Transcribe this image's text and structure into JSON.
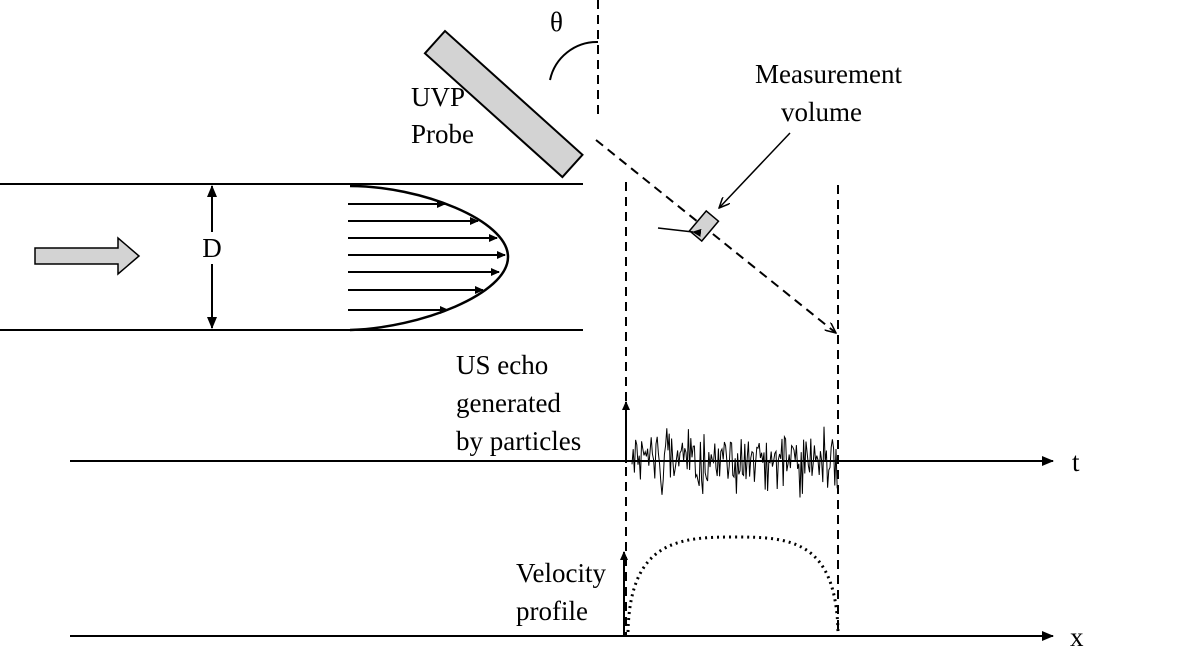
{
  "labels": {
    "theta": "θ",
    "probe_line1": "UVP",
    "probe_line2": "Probe",
    "measurement_line1": "Measurement",
    "measurement_line2": "volume",
    "diameter": "D",
    "echo_line1": "US echo",
    "echo_line2": "generated",
    "echo_line3": "by particles",
    "time_axis": "t",
    "velocity_line1": "Velocity",
    "velocity_line2": "profile",
    "position_axis": "x"
  },
  "colors": {
    "line": "#000000",
    "probe_fill": "#d3d3d3",
    "arrow_fill": "#d3d3d3"
  }
}
